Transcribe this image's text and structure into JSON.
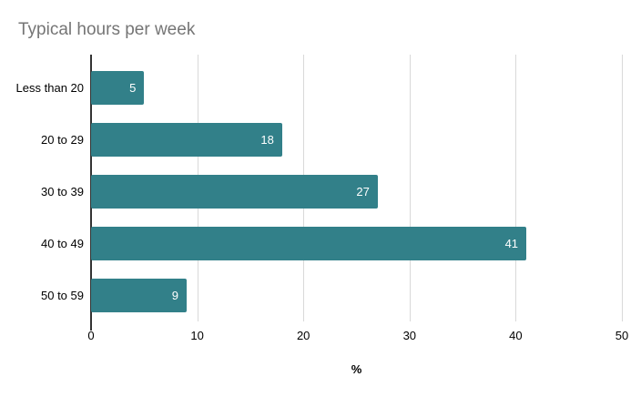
{
  "title": "Typical hours per week",
  "chart_data": {
    "type": "bar",
    "orientation": "horizontal",
    "title": "Typical hours per week",
    "categories": [
      "Less than 20",
      "20 to 29",
      "30 to 39",
      "40 to 49",
      "50 to 59"
    ],
    "values": [
      5,
      18,
      27,
      41,
      9
    ],
    "xlabel": "%",
    "ylabel": "",
    "xlim": [
      0,
      50
    ],
    "xticks": [
      0,
      10,
      20,
      30,
      40,
      50
    ],
    "grid": true,
    "legend": "none",
    "colors": {
      "bar": "#328089",
      "value_label": "#ffffff",
      "title": "#757575",
      "gridline": "#d9d9d9",
      "axis_line": "#333333",
      "tick_label": "#000000"
    }
  }
}
